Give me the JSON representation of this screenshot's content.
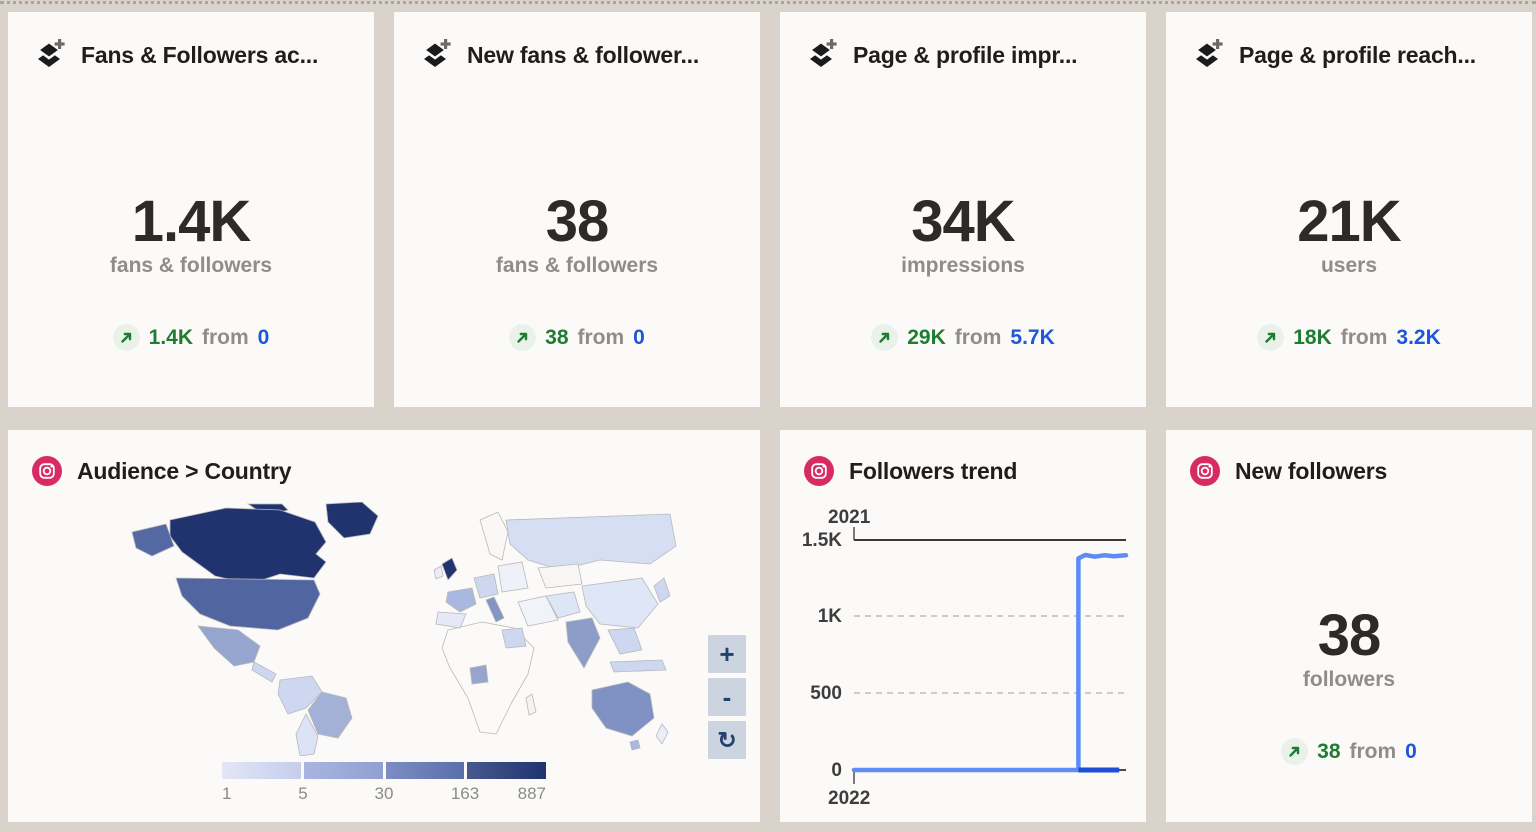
{
  "colors": {
    "page_bg": "#d9d3cc",
    "card_bg": "#fbfaf8",
    "title_text": "#201d1a",
    "value_text": "#2d2b28",
    "muted_text": "#8e8d8b",
    "delta_green": "#1f7d31",
    "delta_badge_bg": "#e8f2e9",
    "link_blue": "#1c57dc",
    "instagram_pink": "#d82b63",
    "map_button_bg": "#ccd4df",
    "map_button_fg": "#23406f",
    "trend_light_blue": "#5f8bf5",
    "trend_dark_blue": "#1c4fd6"
  },
  "kpi_cards": [
    {
      "title": "Fans & Followers ac...",
      "value": "1.4K",
      "label": "fans & followers",
      "change": "1.4K",
      "from_word": "from",
      "previous": "0"
    },
    {
      "title": "New fans & follower...",
      "value": "38",
      "label": "fans & followers",
      "change": "38",
      "from_word": "from",
      "previous": "0"
    },
    {
      "title": "Page & profile impr...",
      "value": "34K",
      "label": "impressions",
      "change": "29K",
      "from_word": "from",
      "previous": "5.7K"
    },
    {
      "title": "Page & profile reach...",
      "value": "21K",
      "label": "users",
      "change": "18K",
      "from_word": "from",
      "previous": "3.2K"
    }
  ],
  "audience_country": {
    "title": "Audience > Country",
    "controls": {
      "zoom_in": "+",
      "zoom_out": "-",
      "reset": "↻"
    },
    "legend_labels": [
      "1",
      "5",
      "30",
      "163",
      "887"
    ],
    "legend_segment_gradients": [
      [
        "#e2e6f6",
        "#c5cdec"
      ],
      [
        "#a9b5df",
        "#8fa0d2"
      ],
      [
        "#7c8dc5",
        "#5a6ea9"
      ],
      [
        "#47598f",
        "#20336f"
      ]
    ],
    "region_colors": {
      "greenland": "#20336f",
      "arctic-islands": "#20336f",
      "canada": "#20336f",
      "alaska": "#5469a3",
      "usa": "#5166a0",
      "mexico": "#95a5ce",
      "central-america": "#cdd7f0",
      "colombia-peru": "#cdd7f0",
      "brazil": "#a3b1d7",
      "argentina-chile": "#dce3f5",
      "uk": "#20336f",
      "ireland": "#e9edf8",
      "scandinavia": "#f9f8f6",
      "france": "#aab7de",
      "spain": "#e4e8f7",
      "germany": "#cdd7f0",
      "italy": "#8494c3",
      "east-europe": "#eff1fa",
      "russia": "#d5def3",
      "kazakhstan": "#f7f6f4",
      "middle-east": "#f1f3fa",
      "iran": "#dee5f6",
      "china": "#dfe6f7",
      "india": "#8c9dc8",
      "se-asia": "#cdd7f0",
      "indonesia": "#cdd7f0",
      "japan": "#cdd7f0",
      "africa": "#fbfaf8",
      "egypt": "#cdd7f0",
      "nigeria": "#95a5ce",
      "madagascar": "#f4f3f1",
      "australia": "#8092c4",
      "tasmania": "#aab7de",
      "new-zealand": "#e9edf8"
    }
  },
  "followers_trend": {
    "title": "Followers trend"
  },
  "new_followers": {
    "title": "New followers",
    "value": "38",
    "label": "followers",
    "change": "38",
    "from_word": "from",
    "previous": "0"
  },
  "chart_data": [
    {
      "type": "choropleth",
      "title": "Audience > Country",
      "network": "instagram",
      "metric": "audience by country",
      "legend_thresholds": [
        1,
        5,
        30,
        163,
        887
      ],
      "regions_by_shade": {
        "darkest_163_to_887": [
          "Canada",
          "Greenland",
          "United Kingdom"
        ],
        "dark_30_to_163": [
          "United States",
          "Alaska"
        ],
        "medium_5_to_30": [
          "Australia",
          "India",
          "Brazil",
          "Mexico",
          "Nigeria",
          "Italy",
          "France"
        ],
        "light_1_to_5": [
          "Russia",
          "China",
          "Japan",
          "Southeast Asia",
          "Indonesia",
          "Colombia",
          "Peru",
          "Argentina",
          "Germany",
          "Spain",
          "Egypt",
          "Central America",
          "Iran"
        ],
        "no_data": [
          "Most of Africa",
          "Scandinavia",
          "Kazakhstan",
          "Saudi Arabia"
        ]
      }
    },
    {
      "type": "line",
      "title": "Followers trend",
      "network": "instagram",
      "top_axis_label": "2021",
      "bottom_axis_label": "2022",
      "y_tick_labels": [
        "1.5K",
        "1K",
        "500",
        "0"
      ],
      "ylim": [
        0,
        1500
      ],
      "grid": "dashed horizontal gridlines at 500 and 1K",
      "series": [
        {
          "name": "2021",
          "color": "#5f8bf5",
          "points": [
            [
              0,
              0
            ],
            [
              0.825,
              0
            ],
            [
              0.825,
              1380
            ],
            [
              0.85,
              1402
            ],
            [
              0.885,
              1392
            ],
            [
              0.92,
              1400
            ],
            [
              0.955,
              1394
            ],
            [
              1,
              1400
            ]
          ],
          "note": "x is fraction across plot width; flat at 0 then jumps to ~1.4K"
        },
        {
          "name": "2022",
          "color": "#1c4fd6",
          "points": [
            [
              0.825,
              0
            ],
            [
              0.975,
              0
            ]
          ]
        }
      ]
    }
  ]
}
